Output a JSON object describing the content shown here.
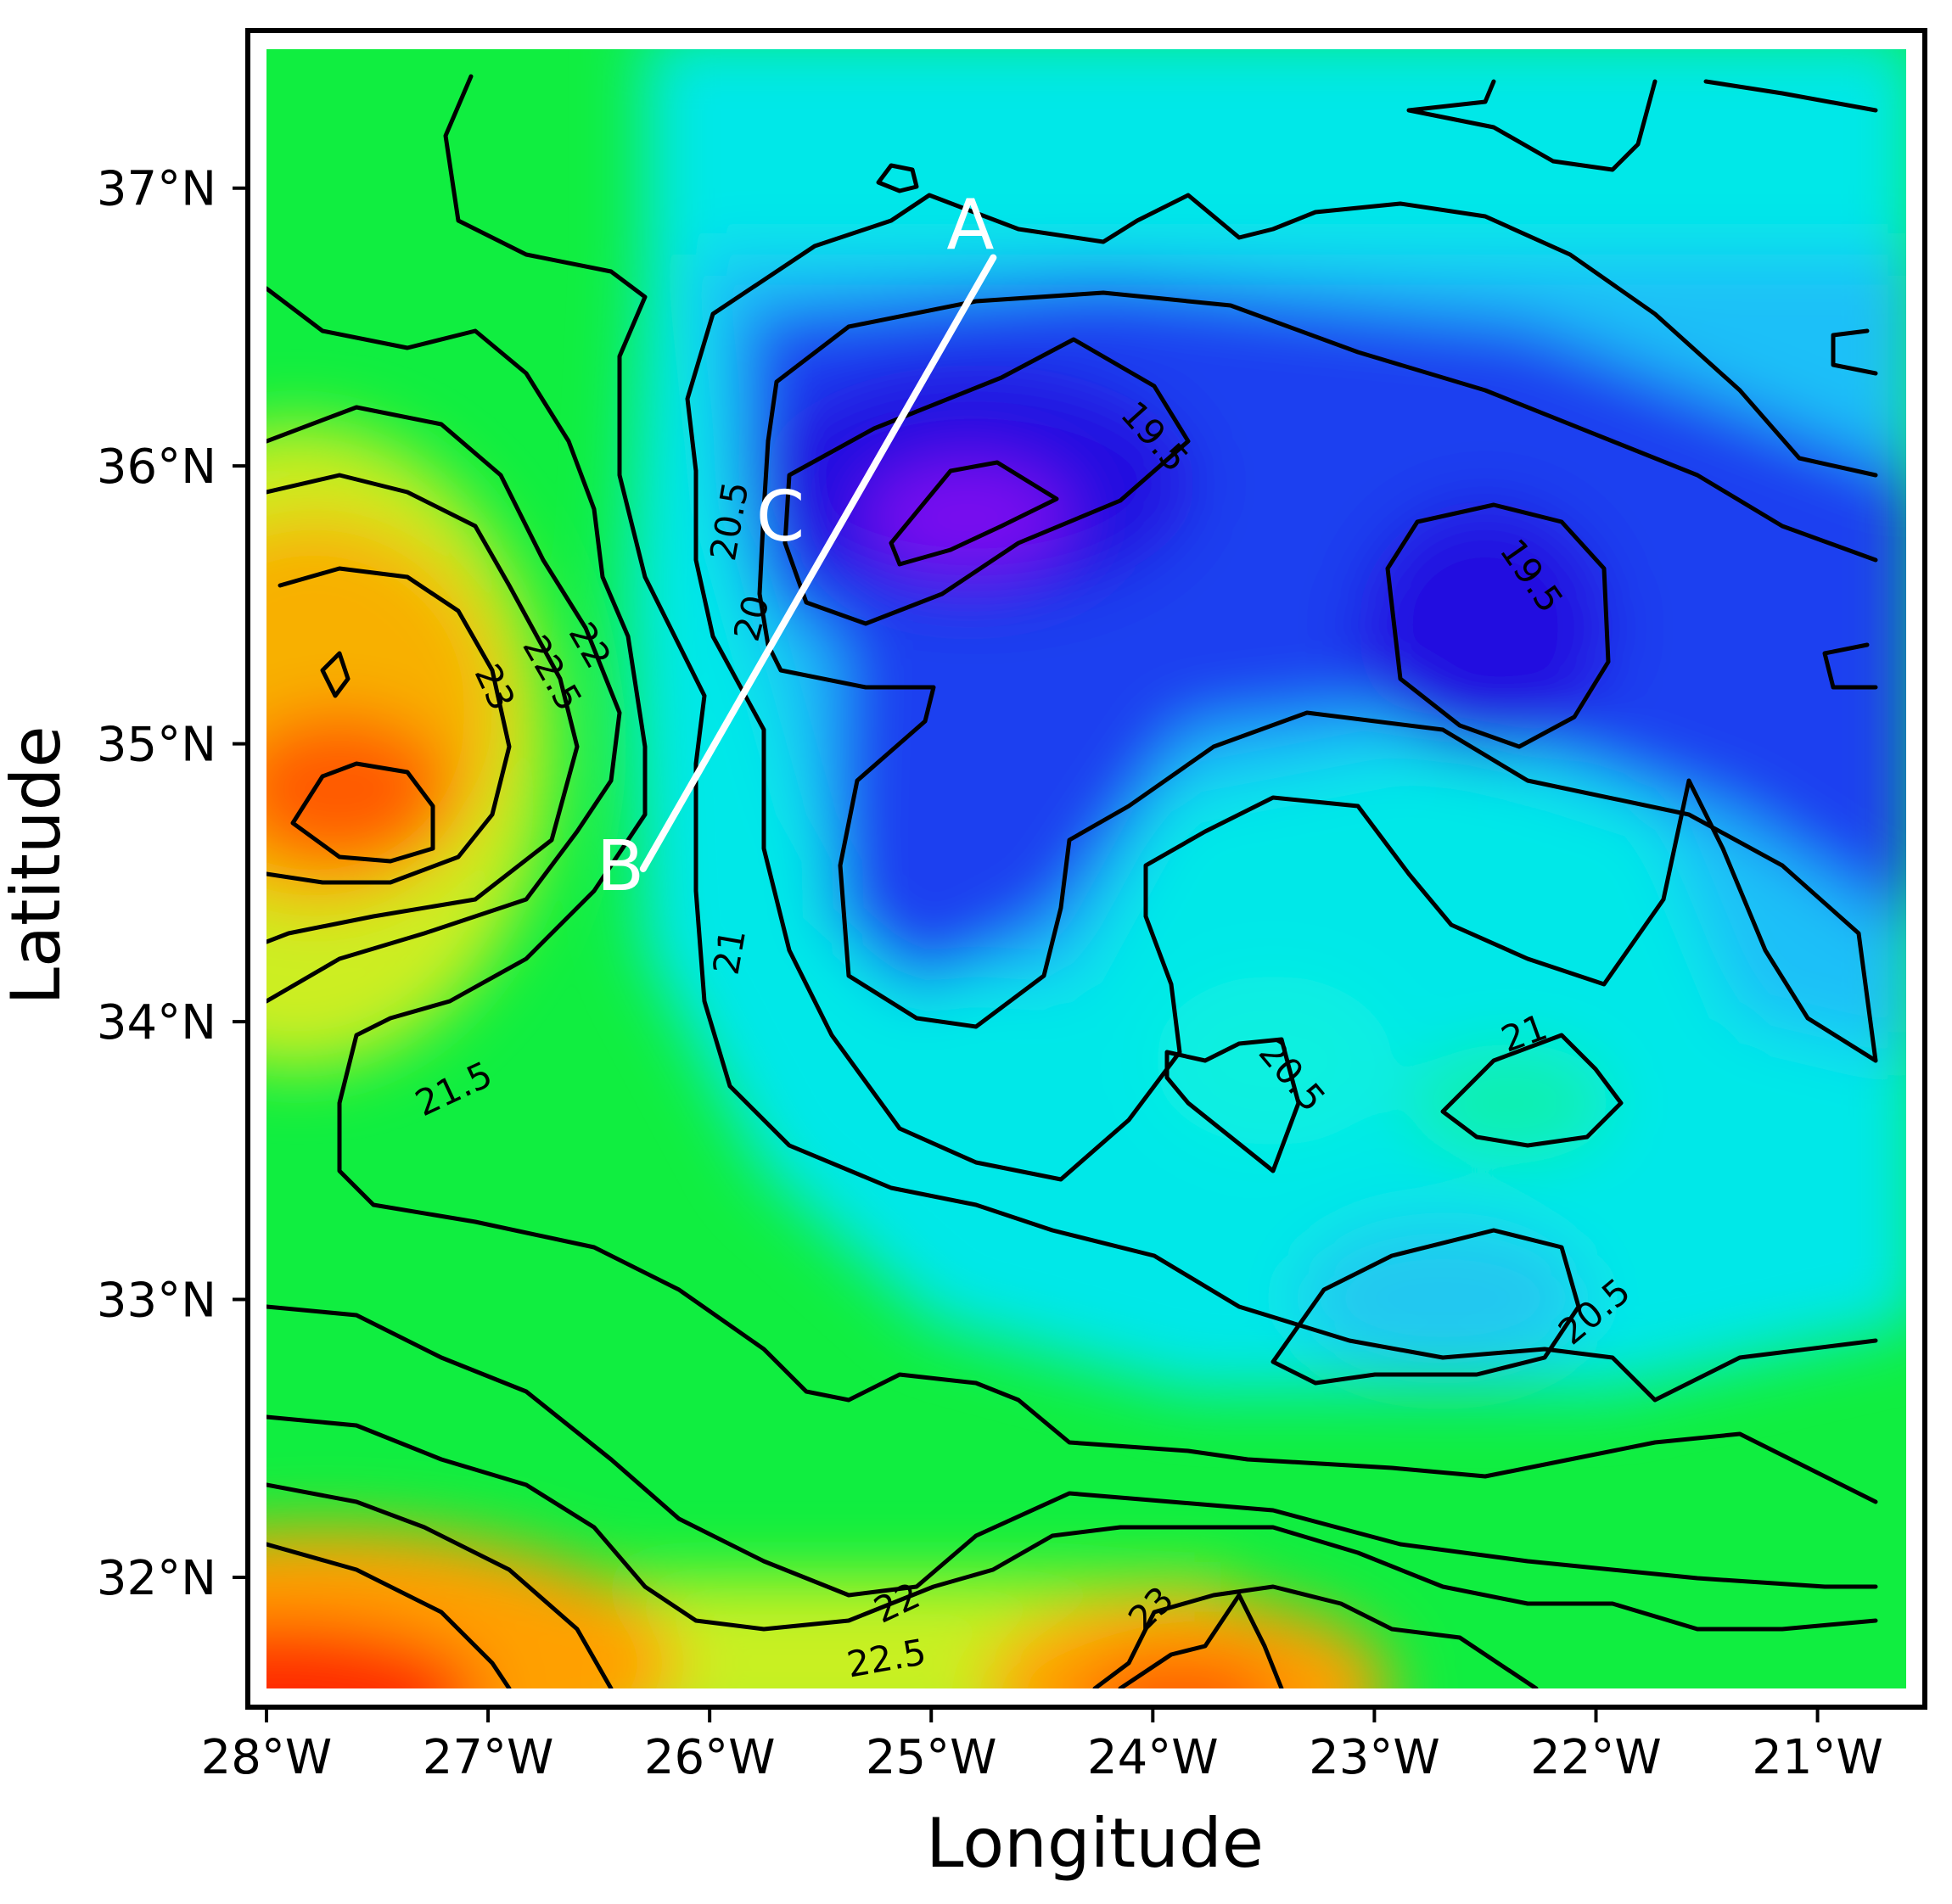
{
  "chart_data": {
    "type": "heatmap",
    "xlabel": "Longitude",
    "ylabel": "Latitude",
    "xlim": [
      -28.0,
      -20.6
    ],
    "ylim": [
      31.6,
      37.5
    ],
    "x_ticks": [
      {
        "value": -28,
        "label": "28°W"
      },
      {
        "value": -27,
        "label": "27°W"
      },
      {
        "value": -26,
        "label": "26°W"
      },
      {
        "value": -25,
        "label": "25°W"
      },
      {
        "value": -24,
        "label": "24°W"
      },
      {
        "value": -23,
        "label": "23°W"
      },
      {
        "value": -22,
        "label": "22°W"
      },
      {
        "value": -21,
        "label": "21°W"
      }
    ],
    "y_ticks": [
      {
        "value": 37,
        "label": "37°N"
      },
      {
        "value": 36,
        "label": "36°N"
      },
      {
        "value": 35,
        "label": "35°N"
      },
      {
        "value": 34,
        "label": "34°N"
      },
      {
        "value": 33,
        "label": "33°N"
      },
      {
        "value": 32,
        "label": "32°N"
      }
    ],
    "contour_labels": [
      {
        "text": "19.5",
        "lon": -24.0,
        "lat": 36.1,
        "rot": 48
      },
      {
        "text": "19.5",
        "lon": -22.3,
        "lat": 35.6,
        "rot": 55
      },
      {
        "text": "20.5",
        "lon": -25.9,
        "lat": 35.8,
        "rot": -80
      },
      {
        "text": "20",
        "lon": -25.8,
        "lat": 35.45,
        "rot": -75
      },
      {
        "text": "22",
        "lon": -26.55,
        "lat": 35.35,
        "rot": 60
      },
      {
        "text": "22.5",
        "lon": -26.72,
        "lat": 35.25,
        "rot": 60
      },
      {
        "text": "23",
        "lon": -26.98,
        "lat": 35.2,
        "rot": 65
      },
      {
        "text": "21",
        "lon": -25.9,
        "lat": 34.25,
        "rot": -80
      },
      {
        "text": "21.5",
        "lon": -27.15,
        "lat": 33.75,
        "rot": -25
      },
      {
        "text": "20.5",
        "lon": -23.38,
        "lat": 33.8,
        "rot": 50
      },
      {
        "text": "21",
        "lon": -22.32,
        "lat": 33.95,
        "rot": -20
      },
      {
        "text": "20.5",
        "lon": -22.0,
        "lat": 32.95,
        "rot": -40
      },
      {
        "text": "22",
        "lon": -25.15,
        "lat": 31.9,
        "rot": -25
      },
      {
        "text": "22.5",
        "lon": -25.2,
        "lat": 31.7,
        "rot": -10
      },
      {
        "text": "23",
        "lon": -24.0,
        "lat": 31.88,
        "rot": -45
      }
    ],
    "transect": {
      "start": {
        "label": "A",
        "lon": -24.72,
        "lat": 36.75
      },
      "end": {
        "label": "B",
        "lon": -26.3,
        "lat": 34.55
      },
      "mid": {
        "label": "C",
        "lon": -25.35,
        "lat": 35.9
      }
    }
  },
  "colors": {
    "frame": "#000000",
    "contour": "#000000",
    "transect": "#ffffff"
  }
}
